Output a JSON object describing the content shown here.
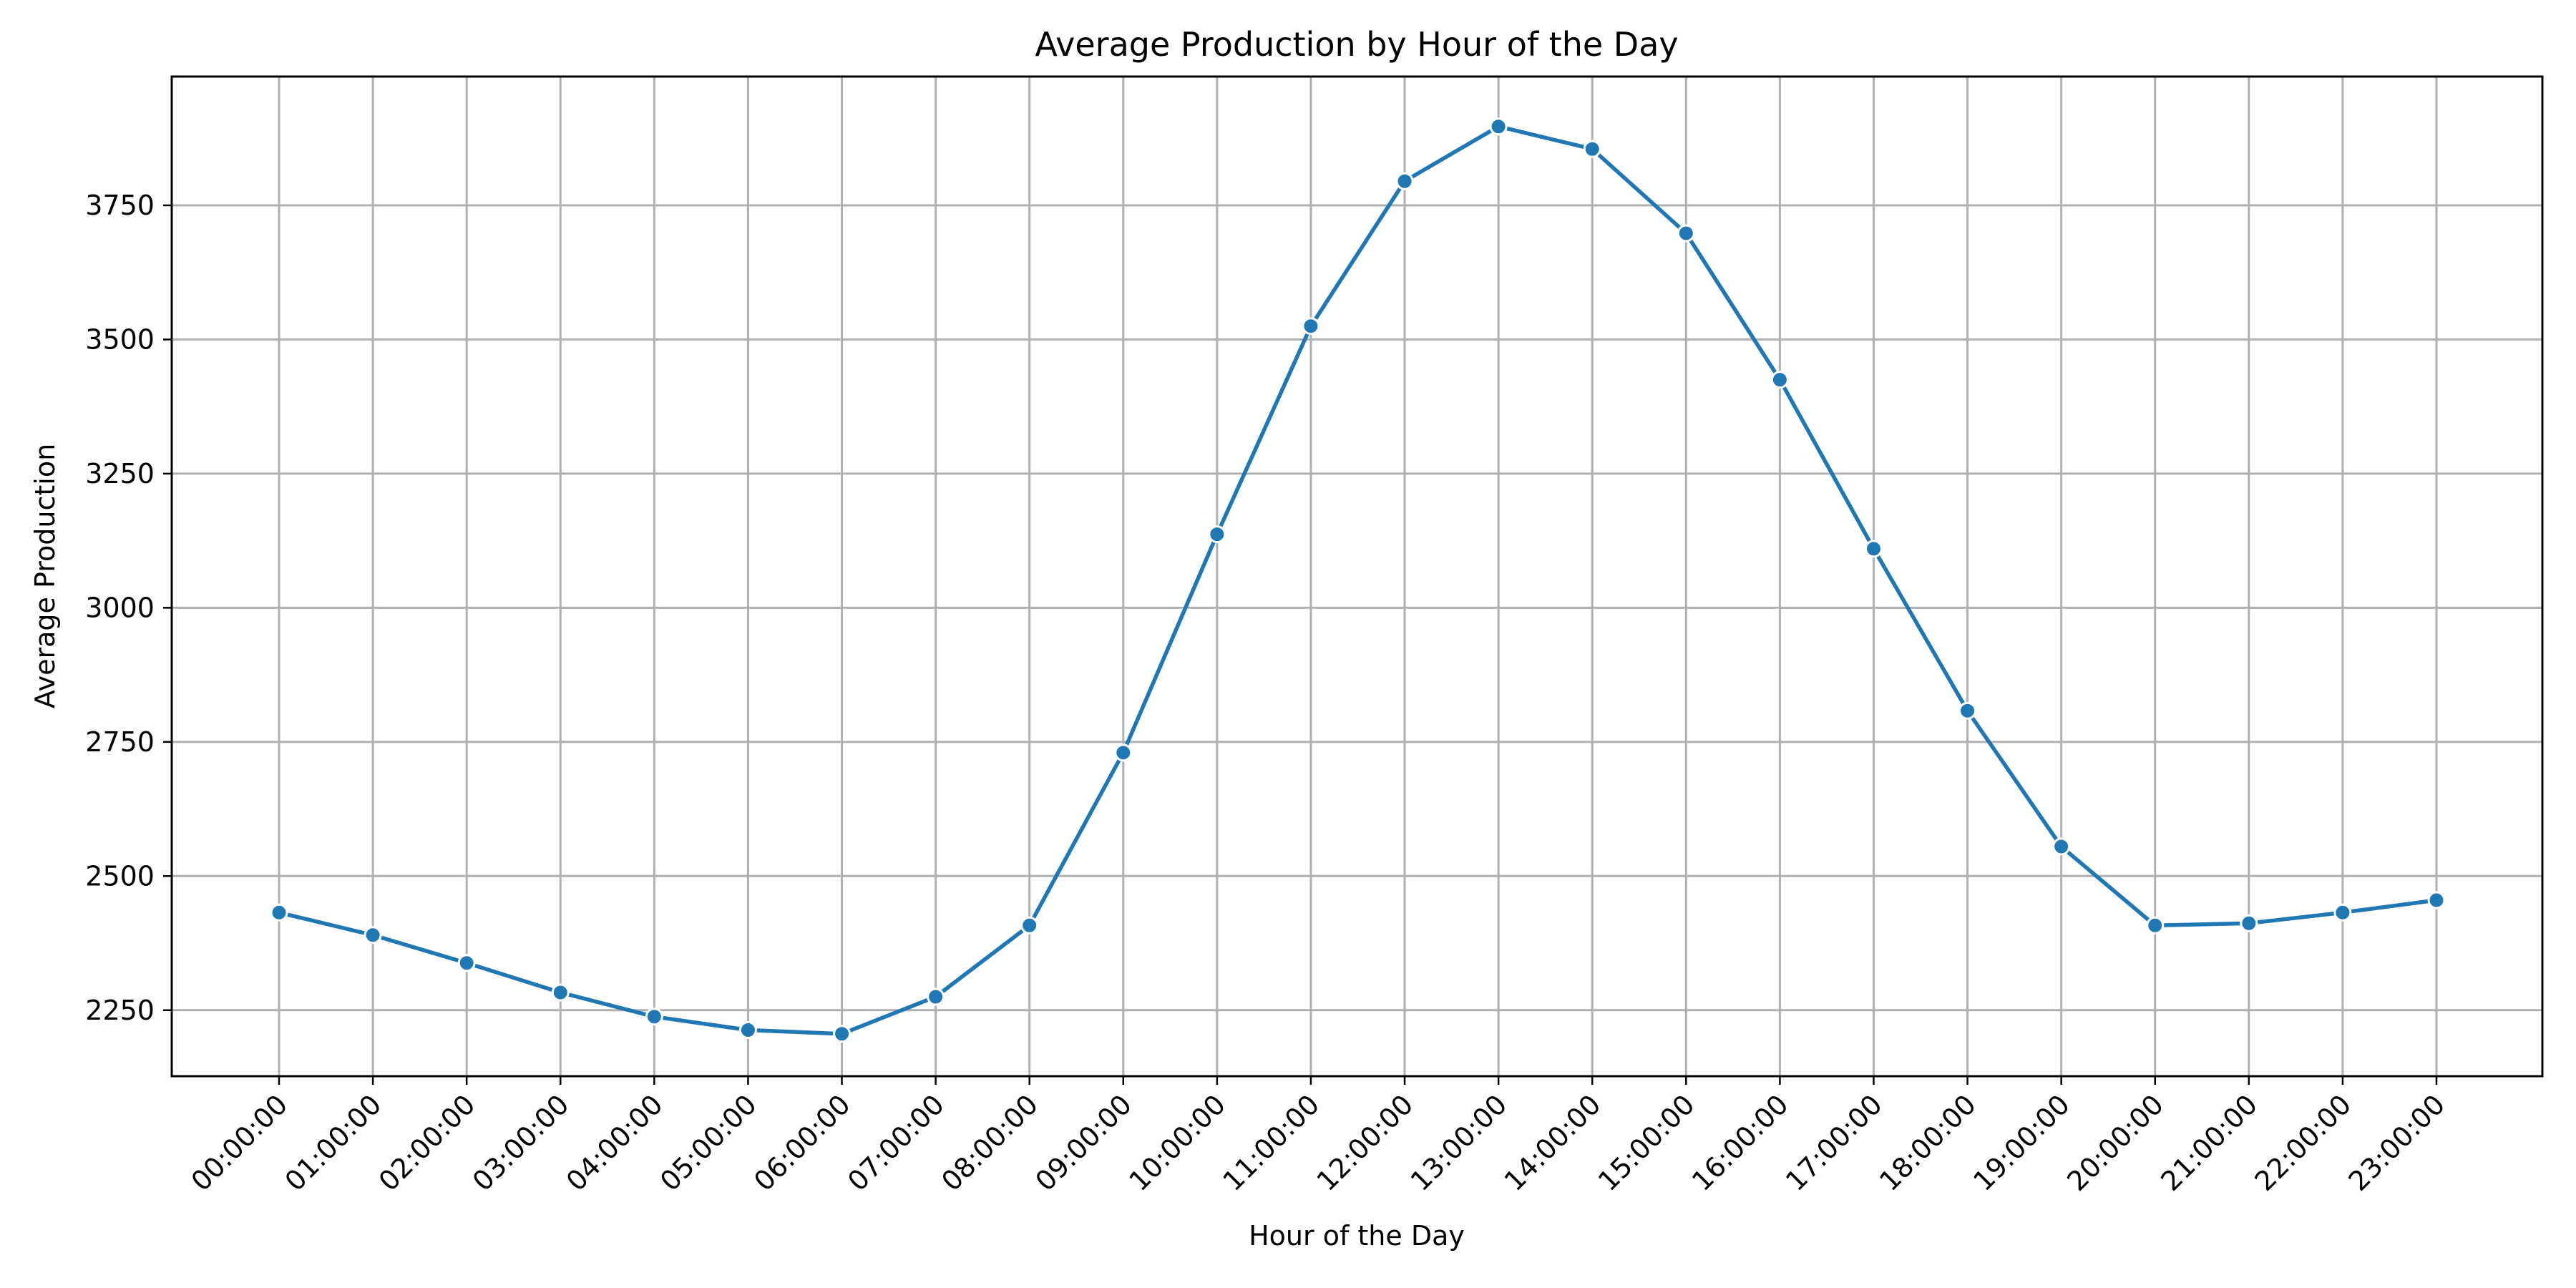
{
  "chart_data": {
    "type": "line",
    "title": "Average Production by Hour of the Day",
    "xlabel": "Hour of the Day",
    "ylabel": "Average Production",
    "categories": [
      "00:00:00",
      "01:00:00",
      "02:00:00",
      "03:00:00",
      "04:00:00",
      "05:00:00",
      "06:00:00",
      "07:00:00",
      "08:00:00",
      "09:00:00",
      "10:00:00",
      "11:00:00",
      "12:00:00",
      "13:00:00",
      "14:00:00",
      "15:00:00",
      "16:00:00",
      "17:00:00",
      "18:00:00",
      "19:00:00",
      "20:00:00",
      "21:00:00",
      "22:00:00",
      "23:00:00"
    ],
    "series": [
      {
        "values": [
          2432,
          2390,
          2338,
          2283,
          2238,
          2213,
          2206,
          2275,
          2408,
          2730,
          3137,
          3525,
          3795,
          3897,
          3855,
          3698,
          3425,
          3110,
          2808,
          2555,
          2408,
          2412,
          2432,
          2455
        ],
        "color": "#1f77b4"
      }
    ],
    "ylim": [
      2127,
      3990
    ],
    "yticks": [
      2250,
      2500,
      2750,
      3000,
      3250,
      3500,
      3750
    ],
    "grid": true,
    "marker": "circle"
  }
}
